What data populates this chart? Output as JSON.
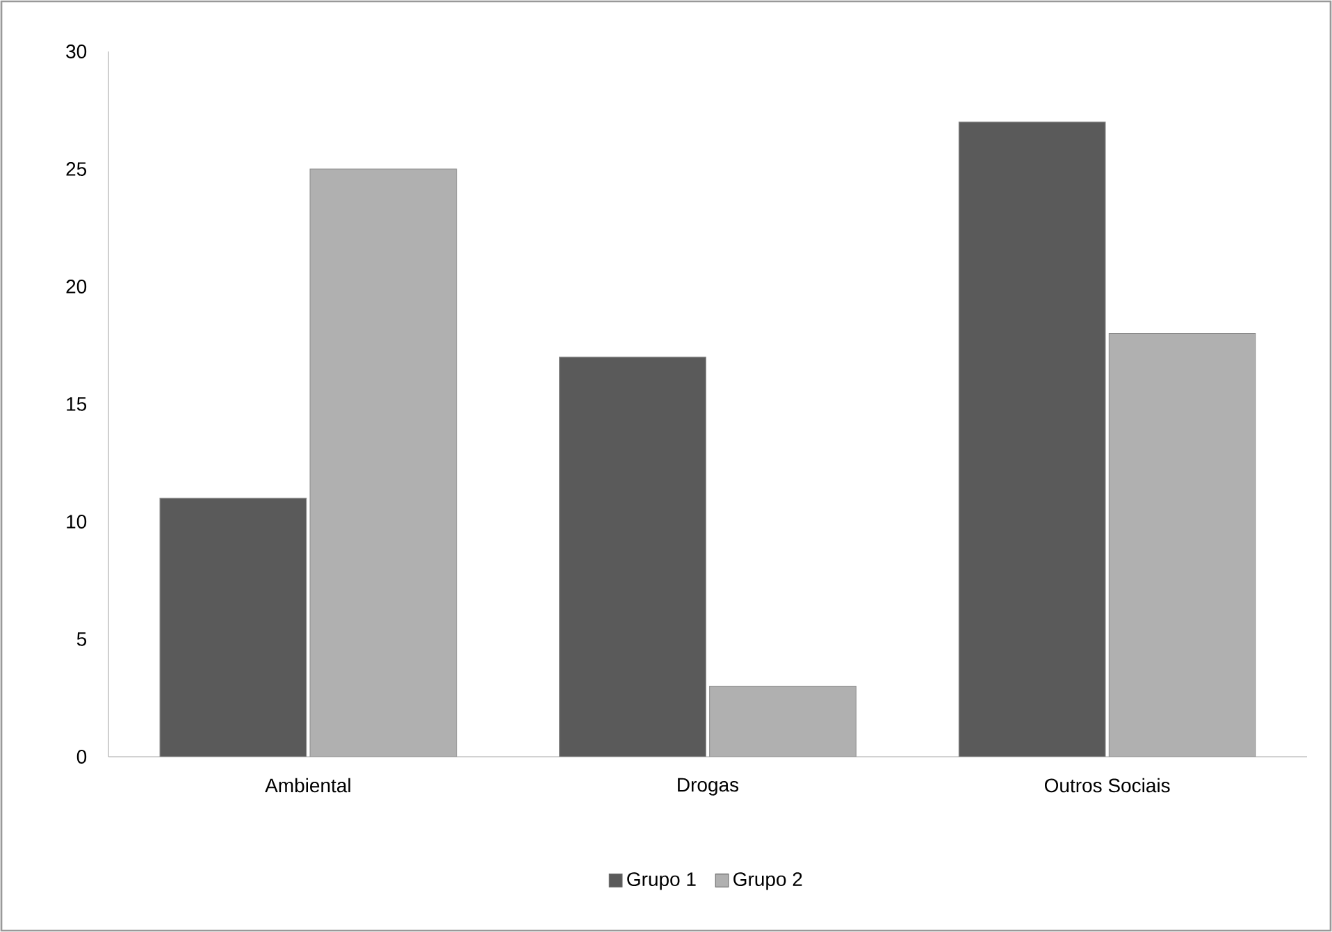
{
  "chart_data": {
    "type": "bar",
    "categories": [
      "Ambiental",
      "Drogas",
      "Outros Sociais"
    ],
    "series": [
      {
        "name": "Grupo 1",
        "color": "#5a5a5a",
        "values": [
          11,
          17,
          27
        ]
      },
      {
        "name": "Grupo 2",
        "color": "#b0b0b0",
        "values": [
          25,
          3,
          18
        ]
      }
    ],
    "ylim": [
      0,
      30
    ],
    "yticks": [
      0,
      5,
      10,
      15,
      20,
      25,
      30
    ],
    "legend": "bottom"
  }
}
